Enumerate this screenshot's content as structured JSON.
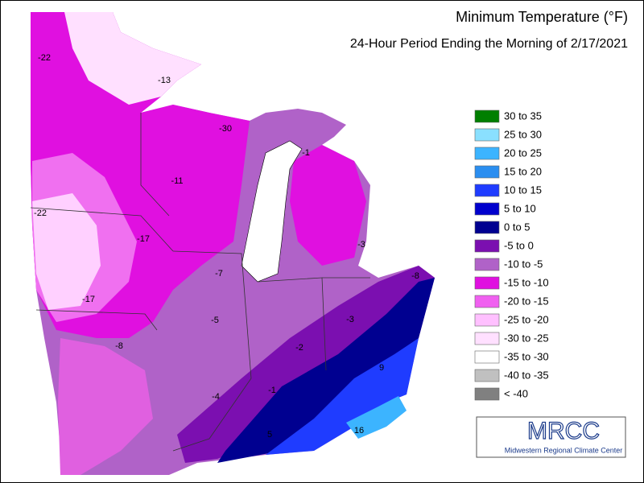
{
  "title": "Minimum Temperature (°F)",
  "subtitle": "24-Hour Period Ending the Morning of 2/17/2021",
  "legend": [
    {
      "label": "30 to 35",
      "color": "#007f00"
    },
    {
      "label": "25 to 30",
      "color": "#8ae0ff"
    },
    {
      "label": "20 to 25",
      "color": "#3cb4ff"
    },
    {
      "label": "15 to 20",
      "color": "#2b8ef0"
    },
    {
      "label": "10 to 15",
      "color": "#1f3cff"
    },
    {
      "label": "5 to 10",
      "color": "#0000cd"
    },
    {
      "label": "0 to 5",
      "color": "#000090"
    },
    {
      "label": "-5 to 0",
      "color": "#7b0fb0"
    },
    {
      "label": "-10 to -5",
      "color": "#b062c8"
    },
    {
      "label": "-15 to -10",
      "color": "#e010e0"
    },
    {
      "label": "-20 to -15",
      "color": "#f060f0"
    },
    {
      "label": "-25 to -20",
      "color": "#ffc0ff"
    },
    {
      "label": "-30 to -25",
      "color": "#ffe0ff"
    },
    {
      "label": "-35 to -30",
      "color": "#ffffff"
    },
    {
      "label": "-40 to -35",
      "color": "#c0c0c0"
    },
    {
      "label": "< -40",
      "color": "#808080"
    }
  ],
  "station_labels": [
    -22,
    -13,
    -30,
    -11,
    -22,
    -17,
    -17,
    -7,
    -5,
    -8,
    -4,
    -1,
    5,
    16,
    9,
    -2,
    -3,
    -8,
    -3,
    -1
  ],
  "logo": {
    "name": "MRCC",
    "full_name": "Midwestern Regional Climate Center"
  }
}
